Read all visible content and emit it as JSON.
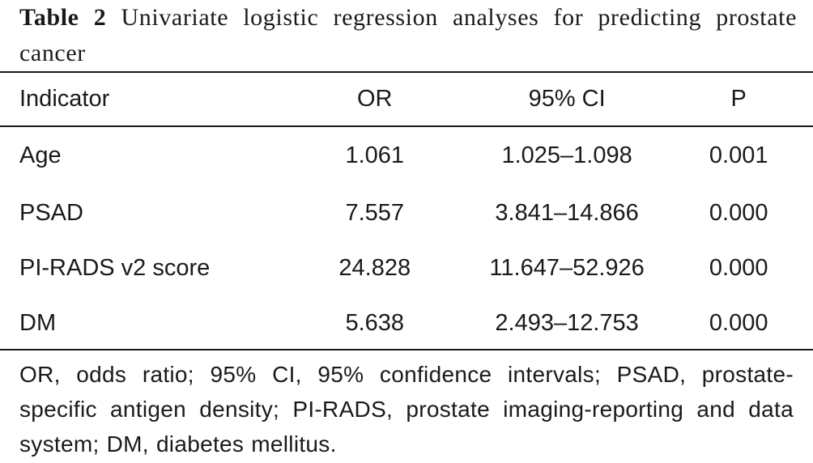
{
  "caption": {
    "label": "Table 2",
    "text": "Univariate logistic regression analyses for predicting prostate cancer"
  },
  "table": {
    "headers": {
      "indicator": "Indicator",
      "or": "OR",
      "ci": "95% CI",
      "p": "P"
    },
    "rows": [
      {
        "indicator": "Age",
        "or": "1.061",
        "ci": "1.025–1.098",
        "p": "0.001"
      },
      {
        "indicator": "PSAD",
        "or": "7.557",
        "ci": "3.841–14.866",
        "p": "0.000"
      },
      {
        "indicator": "PI-RADS v2 score",
        "or": "24.828",
        "ci": "11.647–52.926",
        "p": "0.000"
      },
      {
        "indicator": "DM",
        "or": "5.638",
        "ci": "2.493–12.753",
        "p": "0.000"
      }
    ]
  },
  "footnote": "OR, odds ratio; 95% CI, 95% confidence intervals; PSAD, prostate-specific antigen density; PI-RADS, prostate imaging-reporting and data system; DM, diabetes mellitus."
}
